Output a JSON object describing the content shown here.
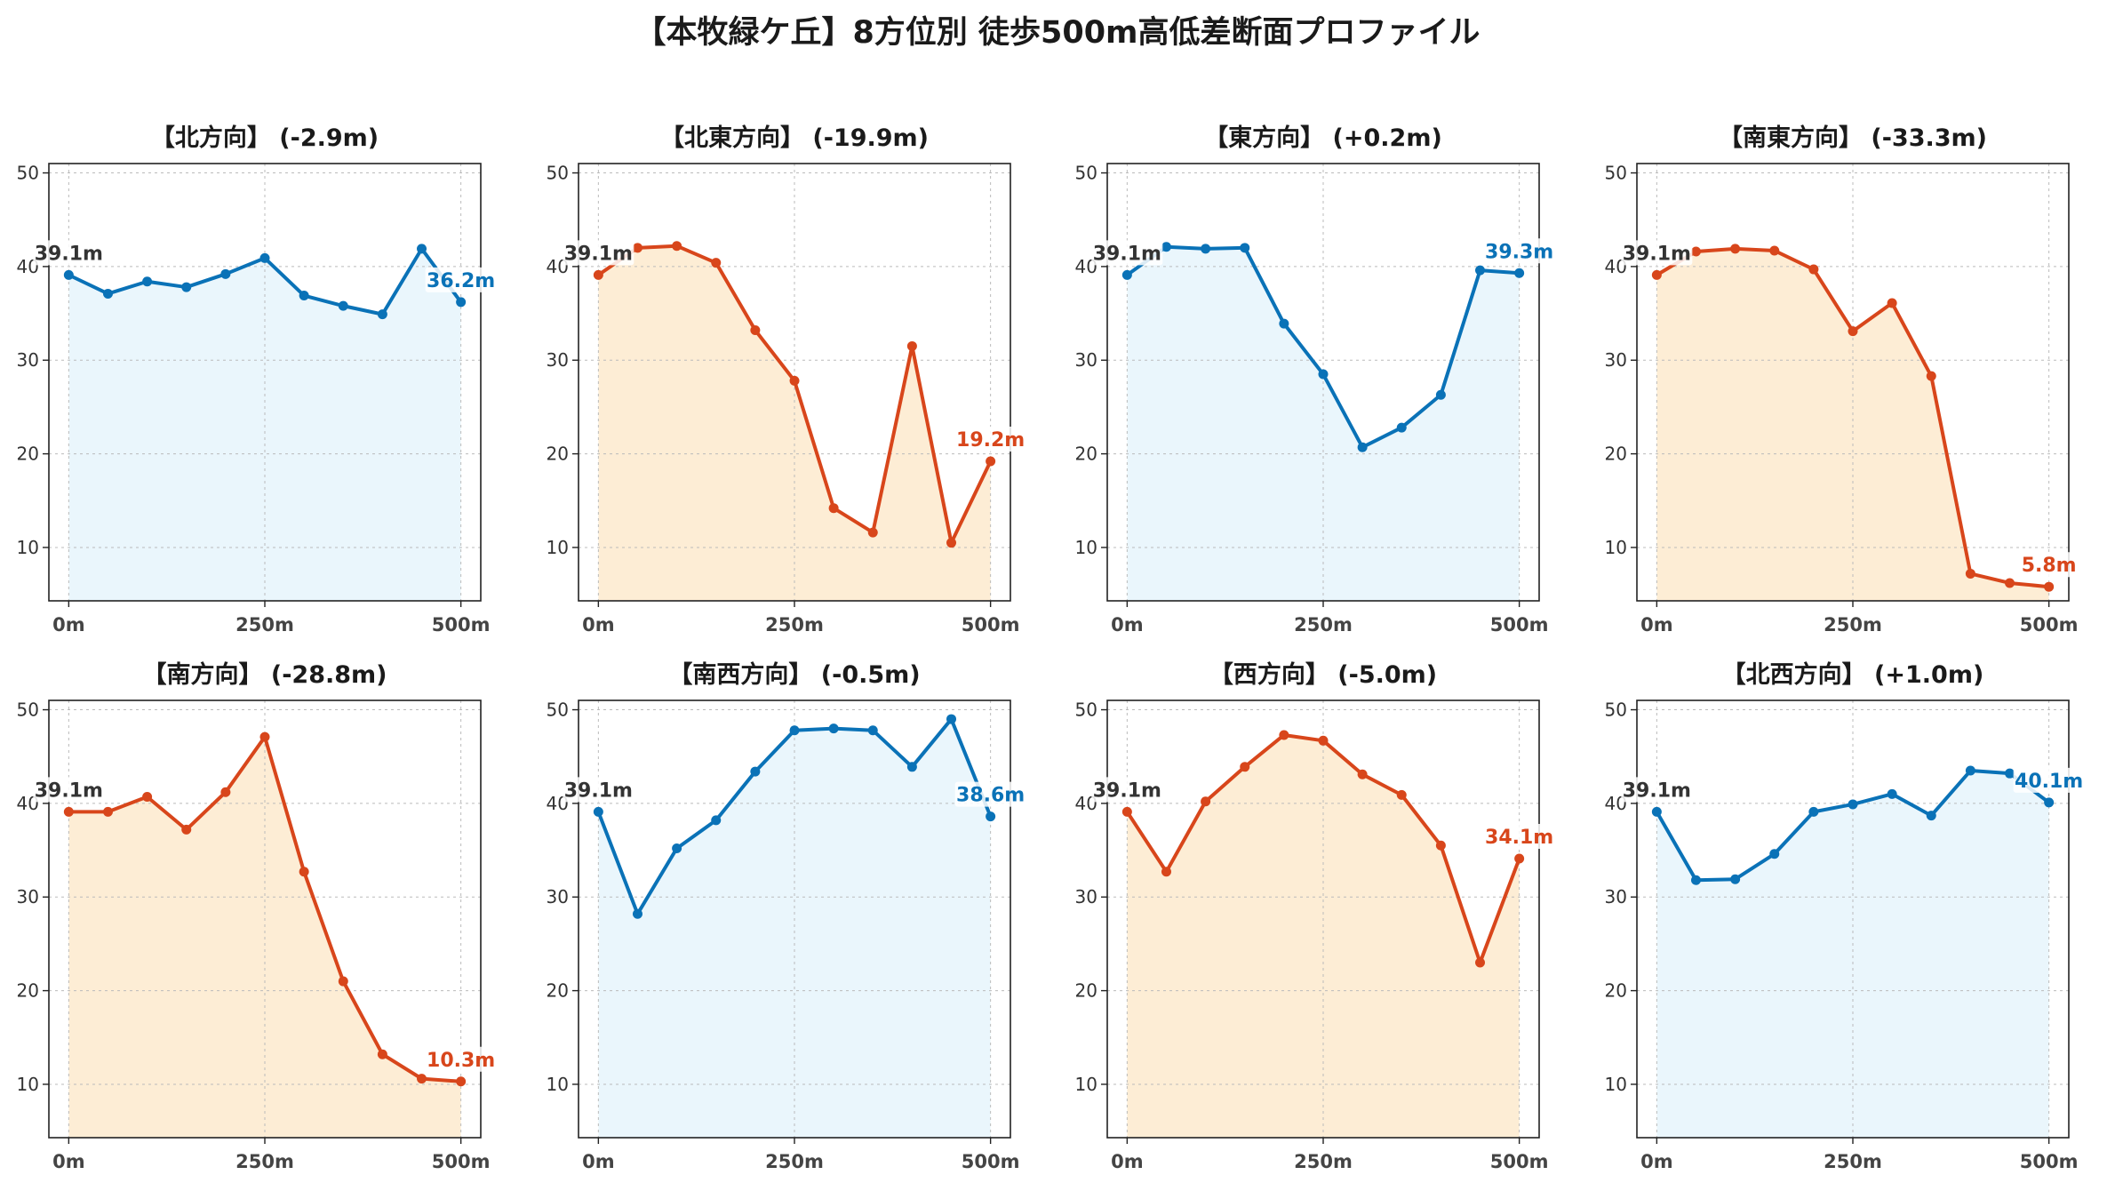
{
  "figure_title": "【本牧緑ケ丘】8方位別 徒歩500m高低差断面プロファイル",
  "colors": {
    "up_line": "#0A72B7",
    "up_fill": "#EAF6FC",
    "down_line": "#D8461B",
    "down_fill": "#FDEDD5",
    "start_label": "#333333"
  },
  "chart_data": [
    {
      "type": "area",
      "title": "【北方向】 (-2.9m)",
      "trend": "up",
      "x": [
        0,
        50,
        100,
        150,
        200,
        250,
        300,
        350,
        400,
        450,
        500
      ],
      "y": [
        39.1,
        37.1,
        38.4,
        37.8,
        39.2,
        40.9,
        36.9,
        35.8,
        34.9,
        41.9,
        36.2
      ],
      "start_label": "39.1m",
      "end_label": "36.2m",
      "ylim": [
        4.3,
        51
      ],
      "yticks": [
        10,
        20,
        30,
        40,
        50
      ],
      "xticks": [
        "0m",
        "250m",
        "500m"
      ],
      "grid": true
    },
    {
      "type": "area",
      "title": "【北東方向】 (-19.9m)",
      "trend": "down",
      "x": [
        0,
        50,
        100,
        150,
        200,
        250,
        300,
        350,
        400,
        450,
        500
      ],
      "y": [
        39.1,
        42.0,
        42.2,
        40.4,
        33.2,
        27.8,
        14.2,
        11.6,
        31.5,
        10.5,
        19.2
      ],
      "start_label": "39.1m",
      "end_label": "19.2m",
      "ylim": [
        4.3,
        51
      ],
      "yticks": [
        10,
        20,
        30,
        40,
        50
      ],
      "xticks": [
        "0m",
        "250m",
        "500m"
      ],
      "grid": true
    },
    {
      "type": "area",
      "title": "【東方向】 (+0.2m)",
      "trend": "up",
      "x": [
        0,
        50,
        100,
        150,
        200,
        250,
        300,
        350,
        400,
        450,
        500
      ],
      "y": [
        39.1,
        42.1,
        41.9,
        42.0,
        33.9,
        28.5,
        20.7,
        22.8,
        26.3,
        39.6,
        39.3
      ],
      "start_label": "39.1m",
      "end_label": "39.3m",
      "ylim": [
        4.3,
        51
      ],
      "yticks": [
        10,
        20,
        30,
        40,
        50
      ],
      "xticks": [
        "0m",
        "250m",
        "500m"
      ],
      "grid": true
    },
    {
      "type": "area",
      "title": "【南東方向】 (-33.3m)",
      "trend": "down",
      "x": [
        0,
        50,
        100,
        150,
        200,
        250,
        300,
        350,
        400,
        450,
        500
      ],
      "y": [
        39.1,
        41.6,
        41.9,
        41.7,
        39.7,
        33.1,
        36.1,
        28.3,
        7.2,
        6.2,
        5.8
      ],
      "start_label": "39.1m",
      "end_label": "5.8m",
      "ylim": [
        4.3,
        51
      ],
      "yticks": [
        10,
        20,
        30,
        40,
        50
      ],
      "xticks": [
        "0m",
        "250m",
        "500m"
      ],
      "grid": true
    },
    {
      "type": "area",
      "title": "【南方向】 (-28.8m)",
      "trend": "down",
      "x": [
        0,
        50,
        100,
        150,
        200,
        250,
        300,
        350,
        400,
        450,
        500
      ],
      "y": [
        39.1,
        39.1,
        40.7,
        37.2,
        41.2,
        47.1,
        32.7,
        21.0,
        13.2,
        10.6,
        10.3
      ],
      "start_label": "39.1m",
      "end_label": "10.3m",
      "ylim": [
        4.3,
        51
      ],
      "yticks": [
        10,
        20,
        30,
        40,
        50
      ],
      "xticks": [
        "0m",
        "250m",
        "500m"
      ],
      "grid": true
    },
    {
      "type": "area",
      "title": "【南西方向】 (-0.5m)",
      "trend": "up",
      "x": [
        0,
        50,
        100,
        150,
        200,
        250,
        300,
        350,
        400,
        450,
        500
      ],
      "y": [
        39.1,
        28.2,
        35.2,
        38.2,
        43.4,
        47.8,
        48.0,
        47.8,
        43.9,
        49.0,
        38.6
      ],
      "start_label": "39.1m",
      "end_label": "38.6m",
      "ylim": [
        4.3,
        51
      ],
      "yticks": [
        10,
        20,
        30,
        40,
        50
      ],
      "xticks": [
        "0m",
        "250m",
        "500m"
      ],
      "grid": true
    },
    {
      "type": "area",
      "title": "【西方向】 (-5.0m)",
      "trend": "down",
      "x": [
        0,
        50,
        100,
        150,
        200,
        250,
        300,
        350,
        400,
        450,
        500
      ],
      "y": [
        39.1,
        32.7,
        40.2,
        43.9,
        47.3,
        46.7,
        43.1,
        40.9,
        35.5,
        23.0,
        34.1
      ],
      "start_label": "39.1m",
      "end_label": "34.1m",
      "ylim": [
        4.3,
        51
      ],
      "yticks": [
        10,
        20,
        30,
        40,
        50
      ],
      "xticks": [
        "0m",
        "250m",
        "500m"
      ],
      "grid": true
    },
    {
      "type": "area",
      "title": "【北西方向】 (+1.0m)",
      "trend": "up",
      "x": [
        0,
        50,
        100,
        150,
        200,
        250,
        300,
        350,
        400,
        450,
        500
      ],
      "y": [
        39.1,
        31.8,
        31.9,
        34.6,
        39.1,
        39.9,
        41.0,
        38.7,
        43.5,
        43.2,
        40.1
      ],
      "start_label": "39.1m",
      "end_label": "40.1m",
      "ylim": [
        4.3,
        51
      ],
      "yticks": [
        10,
        20,
        30,
        40,
        50
      ],
      "xticks": [
        "0m",
        "250m",
        "500m"
      ],
      "grid": true
    }
  ]
}
